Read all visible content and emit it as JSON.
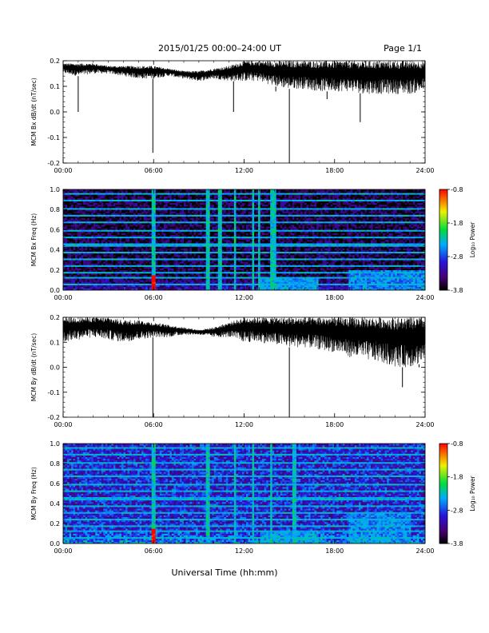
{
  "header": {
    "title": "2015/01/25  00:00–24:00 UT",
    "page": "Page 1/1"
  },
  "xlabel": "Universal Time (hh:mm)",
  "chart_data": [
    {
      "type": "line",
      "ylabel": "MCM Bx dB/dt (nT/sec)",
      "xticks": [
        "00:00",
        "06:00",
        "12:00",
        "18:00",
        "24:00"
      ],
      "xlim": [
        0,
        24
      ],
      "ylim": [
        -0.2,
        0.2
      ],
      "yticks": [
        "-0.2",
        "-0.1",
        "0.0",
        "0.1",
        "0.2"
      ],
      "color": "#000000",
      "x": [
        0,
        1,
        2,
        3,
        4,
        5,
        6,
        7,
        8,
        9,
        10,
        11,
        12,
        13,
        14,
        15,
        16,
        17,
        18,
        19,
        20,
        21,
        22,
        23,
        24
      ],
      "y_upper": [
        0.19,
        0.19,
        0.19,
        0.18,
        0.18,
        0.18,
        0.18,
        0.17,
        0.16,
        0.16,
        0.17,
        0.18,
        0.2,
        0.2,
        0.2,
        0.2,
        0.2,
        0.2,
        0.2,
        0.2,
        0.2,
        0.2,
        0.2,
        0.2,
        0.2
      ],
      "y_lower": [
        0.15,
        0.14,
        0.15,
        0.15,
        0.14,
        0.13,
        0.13,
        0.14,
        0.13,
        0.12,
        0.13,
        0.12,
        0.12,
        0.12,
        0.1,
        0.09,
        0.09,
        0.08,
        0.08,
        0.08,
        0.07,
        0.07,
        0.07,
        0.07,
        0.08
      ],
      "spikes": [
        {
          "x": 1.0,
          "y": 0.0
        },
        {
          "x": 5.95,
          "y": -0.16
        },
        {
          "x": 11.3,
          "y": 0.0
        },
        {
          "x": 14.1,
          "y": 0.08
        },
        {
          "x": 15.0,
          "y": -0.2
        },
        {
          "x": 17.5,
          "y": 0.05
        },
        {
          "x": 19.7,
          "y": -0.04
        }
      ]
    },
    {
      "type": "heatmap",
      "ylabel": "MCM Bx Freq (Hz)",
      "xticks": [
        "00:00",
        "06:00",
        "12:00",
        "18:00",
        "24:00"
      ],
      "xlim": [
        0,
        24
      ],
      "ylim": [
        0,
        1.0
      ],
      "yticks": [
        "0.0",
        "0.2",
        "0.4",
        "0.6",
        "0.8",
        "1.0"
      ],
      "colorbar": {
        "label": "Log₁₀ Power",
        "ticks": [
          "-3.8",
          "-2.8",
          "-1.8",
          "-0.8"
        ],
        "range": [
          -3.8,
          -0.8
        ]
      },
      "harmonic_frequencies": [
        0.06,
        0.12,
        0.18,
        0.24,
        0.31,
        0.38,
        0.45,
        0.52,
        0.59,
        0.67,
        0.74,
        0.81,
        0.89,
        0.96
      ],
      "bright_times": [
        5.95,
        9.6,
        10.4,
        11.4,
        12.6,
        13.0,
        13.8,
        14.0
      ],
      "background_level": -3.6,
      "low_freq_enhancement": {
        "from": 19,
        "to": 24,
        "max_freq": 0.2,
        "level": -2.6
      }
    },
    {
      "type": "line",
      "ylabel": "MCM By dB/dt (nT/sec)",
      "xticks": [
        "00:00",
        "06:00",
        "12:00",
        "18:00",
        "24:00"
      ],
      "xlim": [
        0,
        24
      ],
      "ylim": [
        -0.2,
        0.2
      ],
      "yticks": [
        "-0.2",
        "-0.1",
        "0.0",
        "0.1",
        "0.2"
      ],
      "color": "#000000",
      "x": [
        0,
        1,
        2,
        3,
        4,
        5,
        6,
        7,
        8,
        9,
        10,
        11,
        12,
        13,
        14,
        15,
        16,
        17,
        18,
        19,
        20,
        21,
        22,
        23,
        24
      ],
      "y_upper": [
        0.2,
        0.2,
        0.2,
        0.2,
        0.19,
        0.19,
        0.18,
        0.17,
        0.16,
        0.15,
        0.16,
        0.18,
        0.2,
        0.2,
        0.2,
        0.2,
        0.2,
        0.2,
        0.2,
        0.2,
        0.2,
        0.2,
        0.2,
        0.2,
        0.2
      ],
      "y_lower": [
        0.1,
        0.11,
        0.12,
        0.11,
        0.1,
        0.11,
        0.12,
        0.12,
        0.13,
        0.13,
        0.12,
        0.12,
        0.1,
        0.1,
        0.09,
        0.08,
        0.08,
        0.07,
        0.06,
        0.04,
        0.03,
        0.02,
        0.0,
        0.0,
        0.02
      ],
      "spikes": [
        {
          "x": 5.95,
          "y": -0.2
        },
        {
          "x": 15.0,
          "y": -0.2
        },
        {
          "x": 22.5,
          "y": -0.08
        },
        {
          "x": 23.6,
          "y": 0.0
        }
      ]
    },
    {
      "type": "heatmap",
      "ylabel": "MCM By Freq (Hz)",
      "xticks": [
        "00:00",
        "06:00",
        "12:00",
        "18:00",
        "24:00"
      ],
      "xlim": [
        0,
        24
      ],
      "ylim": [
        0,
        1.0
      ],
      "yticks": [
        "0.0",
        "0.2",
        "0.4",
        "0.6",
        "0.8",
        "1.0"
      ],
      "colorbar": {
        "label": "Log₁₀ Power",
        "ticks": [
          "-3.8",
          "-2.8",
          "-1.8",
          "-0.8"
        ],
        "range": [
          -3.8,
          -0.8
        ]
      },
      "harmonic_frequencies": [
        0.06,
        0.12,
        0.18,
        0.24,
        0.31,
        0.38,
        0.45,
        0.52,
        0.59,
        0.67,
        0.74,
        0.81,
        0.89,
        0.96
      ],
      "bright_times": [
        5.95,
        9.6,
        11.4,
        12.6,
        13.8,
        15.3
      ],
      "background_level": -3.0,
      "low_freq_enhancement": {
        "from": 19,
        "to": 23,
        "max_freq": 0.3,
        "level": -2.6
      }
    }
  ]
}
